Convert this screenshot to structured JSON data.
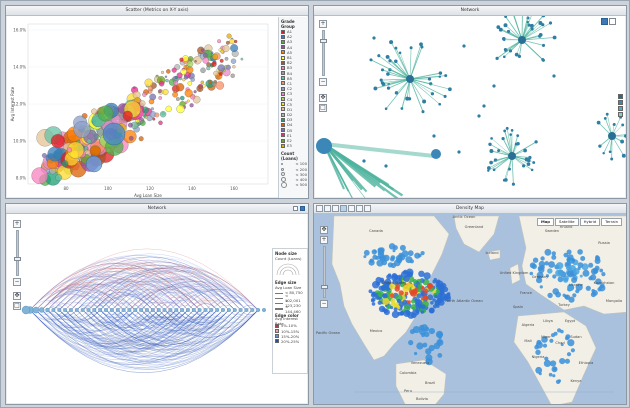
{
  "panels": {
    "scatter": {
      "title": "Scatter (Metrics on X-Y axis)",
      "ylabel": "Avg Interest Rate",
      "xlabel": "Avg Loan Size",
      "yticks": [
        "16.0%",
        "14.0%",
        "12.0%",
        "10.0%",
        "8.0%"
      ],
      "xticks": [
        "80",
        "100",
        "120",
        "140",
        "160"
      ],
      "legend_title": "Grade Group",
      "legend_items": [
        "A1",
        "A2",
        "A3",
        "A4",
        "A5",
        "B1",
        "B2",
        "B3",
        "B4",
        "B5",
        "C1",
        "C2",
        "C3",
        "C4",
        "C5",
        "D1",
        "D2",
        "D3",
        "D4",
        "D5",
        "E1",
        "E2",
        "E3"
      ],
      "size_title": "Count (Loans)",
      "size_items": [
        "< 100",
        "< 200",
        "< 300",
        "< 400",
        "< 500"
      ]
    },
    "network_top": {
      "title": "Network"
    },
    "network_arc": {
      "title": "Network",
      "legend": {
        "node_size_title": "Node size",
        "node_size_sub": "Count (Loans)",
        "edge_size_title": "Edge size",
        "edge_size_sub": "Avg Loan Size",
        "edge_size_items": [
          "< 80,750",
          "< 102,001",
          "< 123,230",
          "< 144,460"
        ],
        "edge_color_title": "Edge color",
        "edge_color_sub": "Avg Interest Rate",
        "edge_color_items": [
          "5%-10%",
          "10%-15%",
          "15%-20%",
          "20%-25%"
        ]
      }
    },
    "density": {
      "title": "Density Map",
      "map_buttons": [
        "Map",
        "Satellite",
        "Hybrid",
        "Terrain"
      ],
      "places": [
        "Canada",
        "United States",
        "Mexico",
        "Venezuela",
        "Colombia",
        "Peru",
        "Brazil",
        "Bolivia",
        "Greenland",
        "Iceland",
        "Sweden",
        "Finland",
        "United Kingdom",
        "France",
        "Spain",
        "Germany",
        "Ukraine",
        "Turkey",
        "Libya",
        "Egypt",
        "Algeria",
        "Mali",
        "Niger",
        "Chad",
        "Sudan",
        "Nigeria",
        "Ethiopia",
        "Kenya",
        "Kazakhstan",
        "Russia",
        "Mongolia",
        "North Atlantic Ocean",
        "Arctic Ocean",
        "Pacific Ocean"
      ]
    }
  },
  "colors": {
    "legend_swatches": [
      "#e41a1c",
      "#377eb8",
      "#4daf4a",
      "#984ea3",
      "#ff7f00",
      "#ffff33",
      "#a65628",
      "#f781bf",
      "#999999",
      "#66c2a5",
      "#fc8d62",
      "#8da0cb",
      "#e78ac3",
      "#a6d854",
      "#ffd92f",
      "#e5c494",
      "#b3b3b3",
      "#1b9e77",
      "#d95f02",
      "#7570b3",
      "#e7298a",
      "#66a61e",
      "#e6ab02"
    ],
    "edge_color_swatches": [
      "#c0392b",
      "#e8a4b8",
      "#6a8fd6",
      "#1f4ea8"
    ],
    "network_node": "#2f7fa3",
    "network_edge": "#4db39e"
  }
}
